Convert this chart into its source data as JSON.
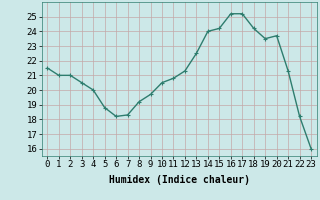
{
  "x": [
    0,
    1,
    2,
    3,
    4,
    5,
    6,
    7,
    8,
    9,
    10,
    11,
    12,
    13,
    14,
    15,
    16,
    17,
    18,
    19,
    20,
    21,
    22,
    23
  ],
  "y": [
    21.5,
    21.0,
    21.0,
    20.5,
    20.0,
    18.8,
    18.2,
    18.3,
    19.2,
    19.7,
    20.5,
    20.8,
    21.3,
    22.5,
    24.0,
    24.2,
    25.2,
    25.2,
    24.2,
    23.5,
    23.7,
    21.3,
    18.2,
    16.0
  ],
  "line_color": "#2e7d6e",
  "marker": "+",
  "marker_size": 3,
  "bg_color": "#cce8e8",
  "grid_color": "#c4a8a8",
  "xlabel": "Humidex (Indice chaleur)",
  "ylim": [
    15.5,
    26.0
  ],
  "xlim": [
    -0.5,
    23.5
  ],
  "yticks": [
    16,
    17,
    18,
    19,
    20,
    21,
    22,
    23,
    24,
    25
  ],
  "xticks": [
    0,
    1,
    2,
    3,
    4,
    5,
    6,
    7,
    8,
    9,
    10,
    11,
    12,
    13,
    14,
    15,
    16,
    17,
    18,
    19,
    20,
    21,
    22,
    23
  ],
  "xlabel_fontsize": 7,
  "tick_fontsize": 6.5,
  "line_width": 1.0
}
